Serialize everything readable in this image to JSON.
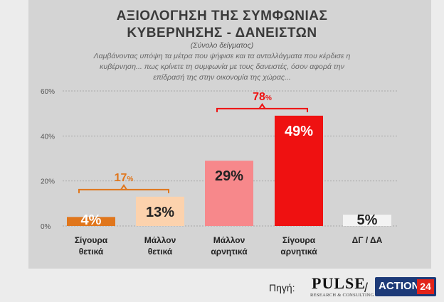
{
  "header": {
    "title_line1": "ΑΞΙΟΛΟΓΗΣΗ ΤΗΣ ΣΥΜΦΩΝΙΑΣ",
    "title_line2": "ΚΥΒΕΡΝΗΣΗΣ - ΔΑΝΕΙΣΤΩΝ",
    "subtitle": "(Σύνολο δείγματος)",
    "question_line1": "Λαμβάνοντας υπόψη τα μέτρα που ψήφισε και τα ανταλλάγματα που κέρδισε η",
    "question_line2": "κυβέρνηση... πως κρίνετε τη συμφωνία με τους δανειστές, όσον αφορά την",
    "question_line3": "επίδρασή της στην οικονομία της χώρας..."
  },
  "chart_data": {
    "type": "bar",
    "categories": [
      [
        "Σίγουρα",
        "θετικά"
      ],
      [
        "Μάλλον",
        "θετικά"
      ],
      [
        "Μάλλον",
        "αρνητικά"
      ],
      [
        "Σίγουρα",
        "αρνητικά"
      ],
      [
        "ΔΓ / ΔΑ"
      ]
    ],
    "values": [
      4,
      13,
      29,
      49,
      5
    ],
    "value_labels": [
      "4%",
      "13%",
      "29%",
      "49%",
      "5%"
    ],
    "bar_colors": [
      "#e0761c",
      "#fcd2ad",
      "#f7888b",
      "#ef1111",
      "#f3f3f3"
    ],
    "label_colors": [
      "#ffffff",
      "#222222",
      "#222222",
      "#ffffff",
      "#222222"
    ],
    "ylim": [
      0,
      60
    ],
    "yticks": [
      0,
      20,
      40,
      60
    ],
    "ytick_labels": [
      "0%",
      "20%",
      "40%",
      "60%"
    ],
    "grid": true,
    "groups": [
      {
        "label": "17",
        "suffix": "%",
        "from": 0,
        "to": 1,
        "color": "#e0761c"
      },
      {
        "label": "78",
        "suffix": "%",
        "from": 2,
        "to": 3,
        "color": "#ef1111"
      }
    ]
  },
  "footer": {
    "source_label": "Πηγή:",
    "pulse_logo": "PULSE",
    "pulse_tagline": "RESEARCH & CONSULTING",
    "separator": "/",
    "action_logo_word": "ACTION",
    "action_logo_num": "24"
  }
}
